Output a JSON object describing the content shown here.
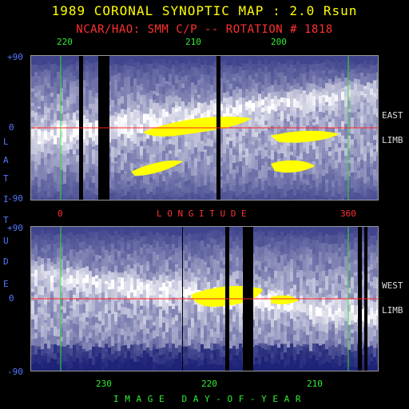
{
  "title": "1989 CORONAL SYNOPTIC MAP : 2.0 Rsun",
  "subtitle": "NCAR/HAO: SMM C/P -- ROTATION # 1818",
  "top_panel": {
    "top_axis_labels": [
      "220",
      "210",
      "200"
    ],
    "lat_top": "+90",
    "lat_mid": "0",
    "lat_bottom": "-90",
    "side_label_1": "EAST",
    "side_label_2": "LIMB"
  },
  "longitude": {
    "left": "0",
    "label": "L O N G I T U D E",
    "right": "360"
  },
  "bottom_panel": {
    "bottom_axis_labels": [
      "230",
      "220",
      "210"
    ],
    "lat_top": "+90",
    "lat_mid": "0",
    "lat_bottom": "-90",
    "side_label_1": "WEST",
    "side_label_2": "LIMB"
  },
  "latitude_vertical": [
    "L",
    "A",
    "T",
    "I",
    "T",
    "U",
    "D",
    "E"
  ],
  "xaxis_label": "I M A G E   D A Y - O F - Y E A R",
  "colors": {
    "background": "#000000",
    "title": "#ffff00",
    "subtitle": "#ff3030",
    "axis_green": "#33ee33",
    "latitude_blue": "#5577ff",
    "equator_red": "#ff2020",
    "map_dark": "#1a1f7a",
    "map_light": "#ffffff",
    "map_bright": "#ffff00"
  }
}
